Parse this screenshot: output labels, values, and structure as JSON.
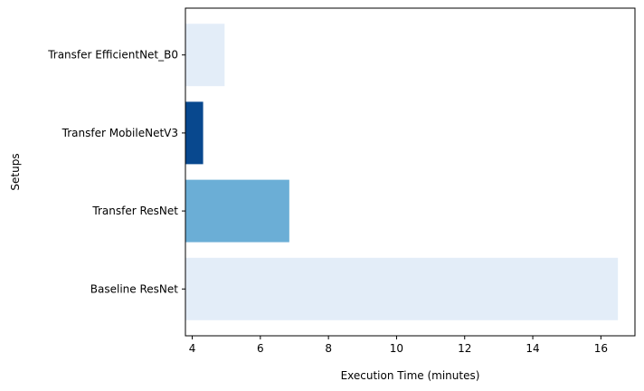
{
  "chart_data": {
    "type": "bar",
    "orientation": "horizontal",
    "xlabel": "Execution Time (minutes)",
    "ylabel": "Setups",
    "xlim": [
      3.8,
      17.0
    ],
    "xticks": [
      4,
      6,
      8,
      10,
      12,
      14,
      16
    ],
    "grid": false,
    "categories": [
      "Baseline ResNet",
      "Transfer ResNet",
      "Transfer MobileNetV3",
      "Transfer EfficientNet_B0"
    ],
    "values": [
      16.5,
      6.85,
      4.32,
      4.95
    ],
    "bar_colors": [
      "#e3edf8",
      "#6baed6",
      "#08488e",
      "#e3edf8"
    ]
  }
}
